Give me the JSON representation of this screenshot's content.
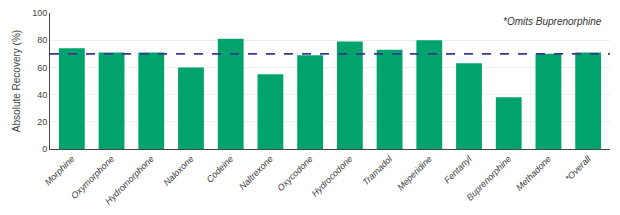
{
  "chart_data": {
    "type": "bar",
    "categories": [
      "Morphine",
      "Oxymorphone",
      "Hydromorphone",
      "Naloxone",
      "Codeine",
      "Naltrexone",
      "Oxycodone",
      "Hydrocodone",
      "Tramadol",
      "Meperidine",
      "Fentanyl",
      "Buprenorphine",
      "Methadone",
      "*Overall"
    ],
    "values": [
      74,
      71,
      71,
      60,
      81,
      55,
      69,
      79,
      73,
      80,
      63,
      38,
      70,
      71
    ],
    "color": "#00A36C",
    "ylabel": "Absolute Recovery (%)",
    "ylim": [
      0,
      100
    ],
    "yticks": [
      0,
      20,
      40,
      60,
      80,
      100
    ],
    "grid": true,
    "reference_line": {
      "value": 70,
      "color": "#383890",
      "line_style": "dashed"
    },
    "annotation": "*Omits Buprenorphine"
  }
}
